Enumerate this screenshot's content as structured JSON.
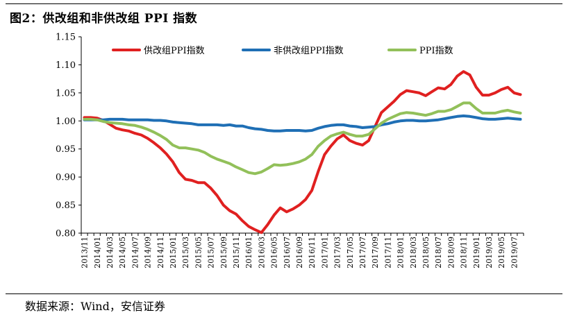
{
  "title": "图2：供改组和非供改组 PPI 指数",
  "source": "数据来源：Wind，安信证券",
  "chart_data": {
    "type": "line",
    "xlabel": "",
    "ylabel": "",
    "ylim": [
      0.8,
      1.15
    ],
    "y_ticks": [
      "0.80",
      "0.85",
      "0.90",
      "0.95",
      "1.00",
      "1.05",
      "1.10",
      "1.15"
    ],
    "grid": false,
    "legend_position": "top",
    "x_tick_labels": [
      "2013/11",
      "2014/01",
      "2014/03",
      "2014/05",
      "2014/07",
      "2014/09",
      "2014/11",
      "2015/01",
      "2015/03",
      "2015/05",
      "2015/07",
      "2015/09",
      "2015/11",
      "2016/01",
      "2016/03",
      "2016/05",
      "2016/07",
      "2016/09",
      "2016/11",
      "2017/01",
      "2017/03",
      "2017/05",
      "2017/07",
      "2017/09",
      "2017/11",
      "2018/01",
      "2018/03",
      "2018/05",
      "2018/07",
      "2018/09",
      "2018/11",
      "2019/01",
      "2019/03",
      "2019/05",
      "2019/07"
    ],
    "series": [
      {
        "name": "供改组PPI指数",
        "color": "#e02020",
        "values": [
          1.006,
          1.006,
          1.005,
          1.001,
          0.994,
          0.987,
          0.984,
          0.982,
          0.978,
          0.975,
          0.969,
          0.961,
          0.952,
          0.941,
          0.927,
          0.908,
          0.896,
          0.894,
          0.89,
          0.89,
          0.88,
          0.867,
          0.85,
          0.84,
          0.834,
          0.822,
          0.812,
          0.806,
          0.801,
          0.815,
          0.832,
          0.845,
          0.838,
          0.843,
          0.85,
          0.86,
          0.876,
          0.91,
          0.94,
          0.955,
          0.968,
          0.975,
          0.965,
          0.96,
          0.957,
          0.965,
          0.99,
          1.015,
          1.025,
          1.035,
          1.047,
          1.054,
          1.052,
          1.05,
          1.045,
          1.052,
          1.059,
          1.057,
          1.065,
          1.08,
          1.088,
          1.082,
          1.06,
          1.046,
          1.046,
          1.05,
          1.056,
          1.06,
          1.05,
          1.047
        ]
      },
      {
        "name": "非供改组PPI指数",
        "color": "#1f6fb5",
        "values": [
          1.002,
          1.002,
          1.002,
          1.002,
          1.003,
          1.003,
          1.003,
          1.002,
          1.002,
          1.002,
          1.002,
          1.001,
          1.001,
          1.0,
          0.998,
          0.997,
          0.996,
          0.995,
          0.993,
          0.993,
          0.993,
          0.993,
          0.992,
          0.993,
          0.991,
          0.991,
          0.988,
          0.986,
          0.985,
          0.983,
          0.982,
          0.982,
          0.983,
          0.983,
          0.983,
          0.982,
          0.983,
          0.987,
          0.99,
          0.992,
          0.993,
          0.993,
          0.991,
          0.99,
          0.988,
          0.989,
          0.99,
          0.993,
          0.995,
          0.998,
          1.0,
          1.001,
          1.001,
          1.0,
          1.0,
          1.001,
          1.002,
          1.004,
          1.006,
          1.008,
          1.009,
          1.008,
          1.006,
          1.004,
          1.003,
          1.003,
          1.004,
          1.005,
          1.004,
          1.003
        ]
      },
      {
        "name": "PPI指数",
        "color": "#92c05a",
        "values": [
          1.003,
          1.003,
          1.002,
          0.999,
          0.997,
          0.996,
          0.995,
          0.993,
          0.992,
          0.989,
          0.985,
          0.98,
          0.974,
          0.967,
          0.957,
          0.952,
          0.952,
          0.95,
          0.948,
          0.944,
          0.937,
          0.932,
          0.928,
          0.924,
          0.918,
          0.913,
          0.908,
          0.906,
          0.909,
          0.915,
          0.922,
          0.921,
          0.922,
          0.924,
          0.927,
          0.932,
          0.94,
          0.955,
          0.965,
          0.973,
          0.977,
          0.98,
          0.976,
          0.973,
          0.973,
          0.976,
          0.986,
          0.996,
          1.003,
          1.008,
          1.013,
          1.015,
          1.014,
          1.012,
          1.01,
          1.013,
          1.017,
          1.017,
          1.02,
          1.026,
          1.032,
          1.032,
          1.022,
          1.014,
          1.014,
          1.014,
          1.017,
          1.019,
          1.016,
          1.014
        ]
      }
    ]
  }
}
